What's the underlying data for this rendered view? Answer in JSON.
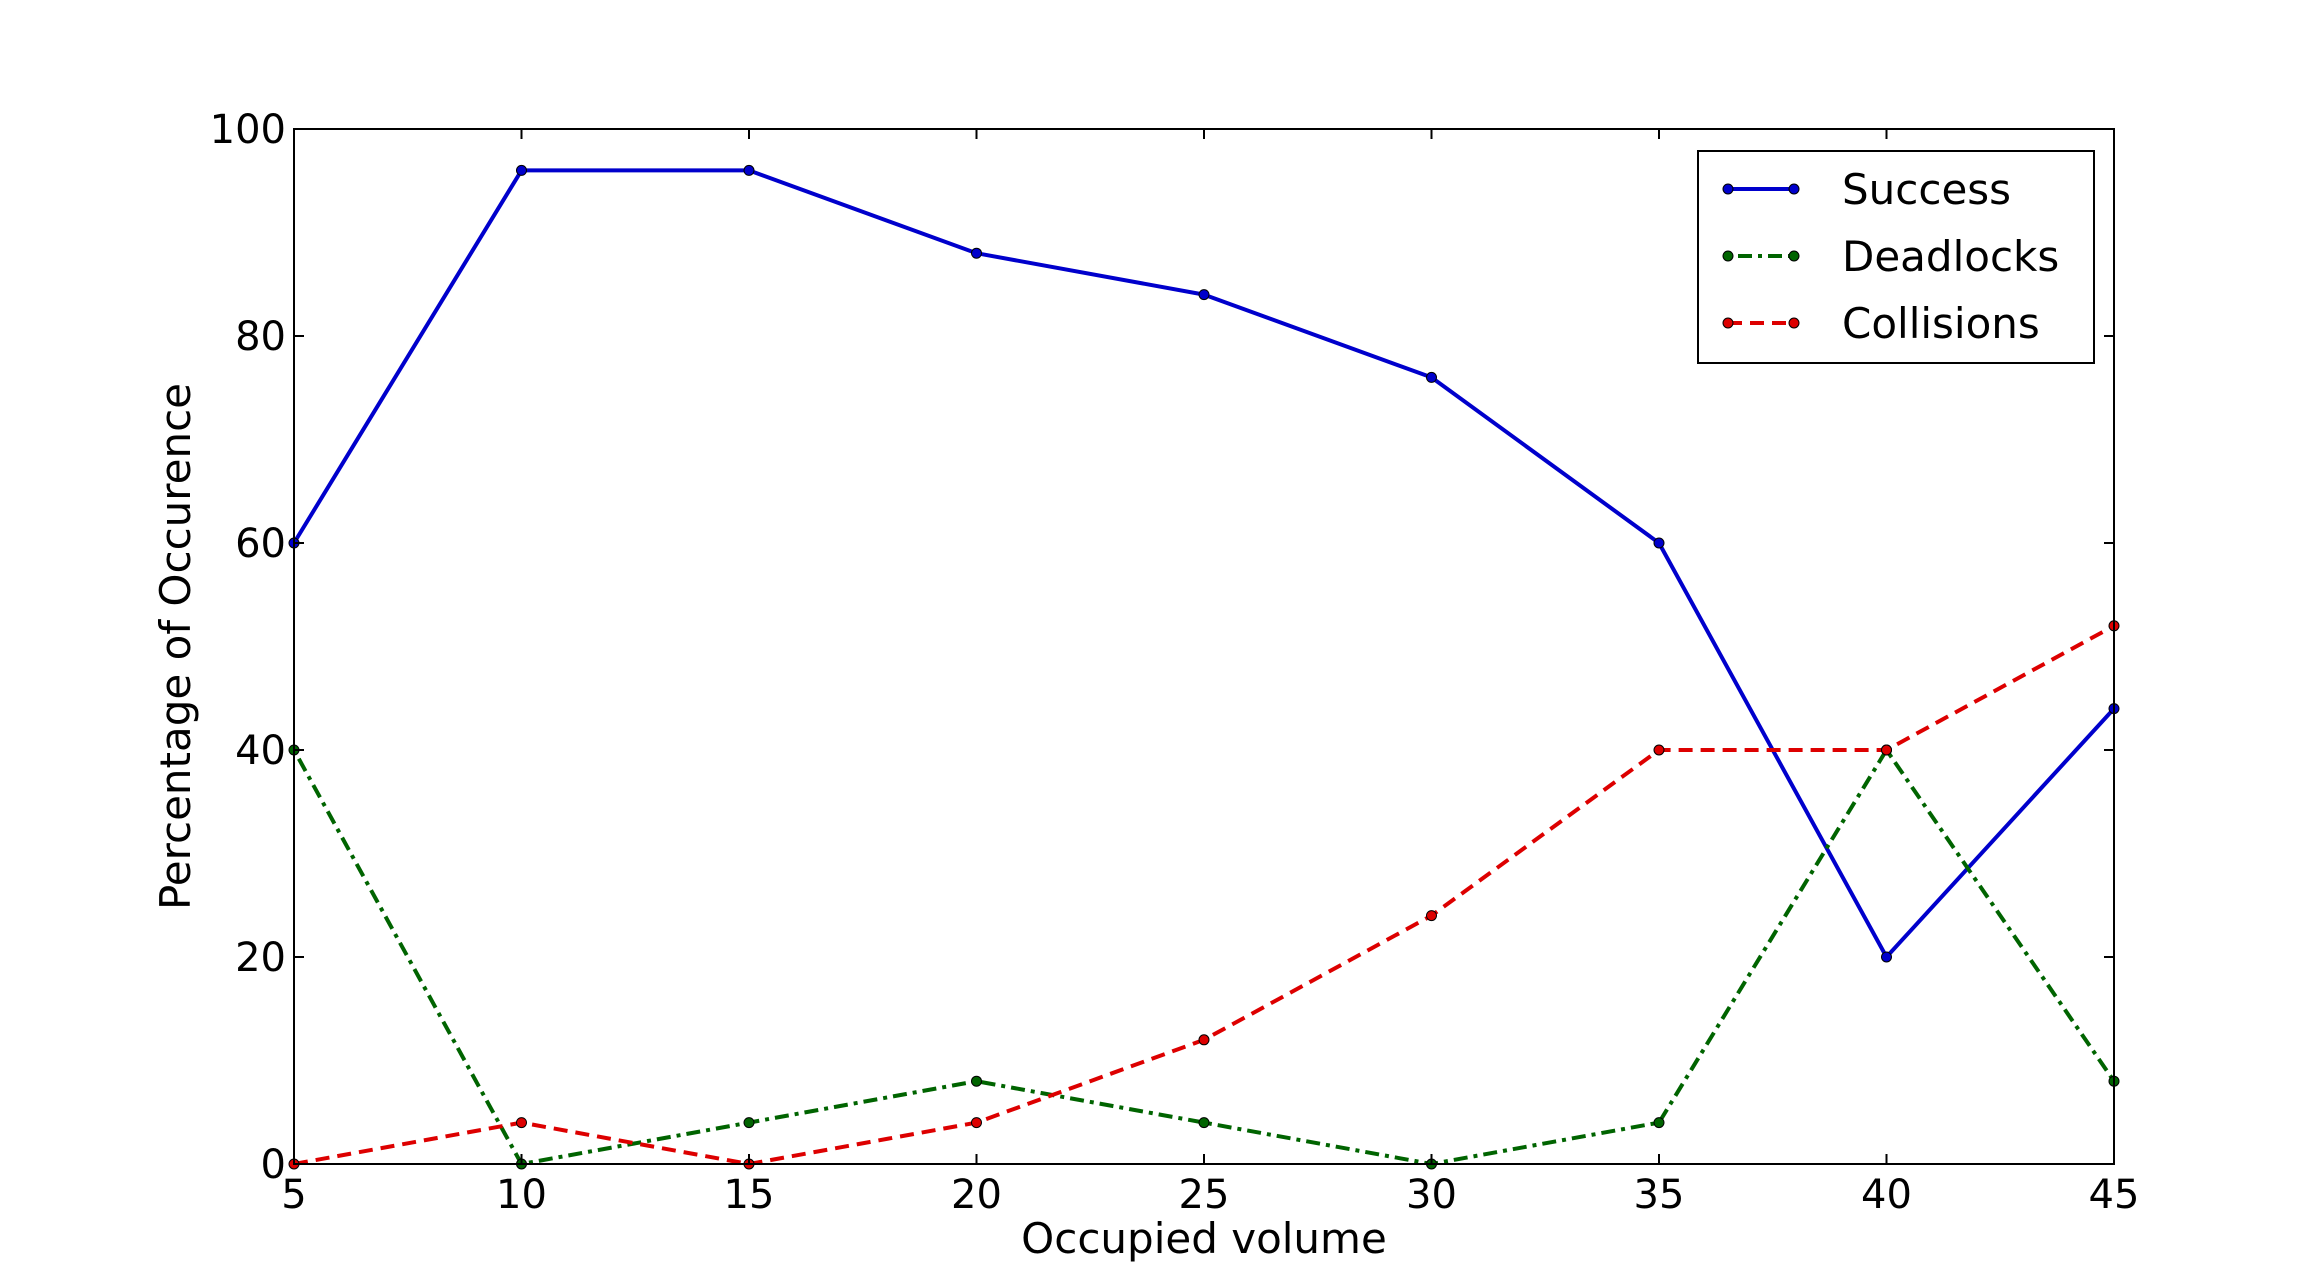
{
  "chart_data": {
    "type": "line",
    "title": "",
    "xlabel": "Occupied volume",
    "ylabel": "Percentage of Occurence",
    "xlim": [
      5,
      45
    ],
    "ylim": [
      0,
      100
    ],
    "x_ticks": [
      5,
      10,
      15,
      20,
      25,
      30,
      35,
      40,
      45
    ],
    "y_ticks": [
      0,
      20,
      40,
      60,
      80,
      100
    ],
    "x_tick_labels": [
      "5",
      "10",
      "15",
      "20",
      "25",
      "30",
      "35",
      "40",
      "45"
    ],
    "y_tick_labels": [
      "0",
      "20",
      "40",
      "60",
      "80",
      "100"
    ],
    "grid": false,
    "legend_position": "top-right",
    "x": [
      5,
      10,
      15,
      20,
      25,
      30,
      35,
      40,
      45
    ],
    "series": [
      {
        "name": "Success",
        "color": "#0000cc",
        "line_style": "solid",
        "values": [
          60,
          96,
          96,
          88,
          84,
          76,
          60,
          20,
          44
        ]
      },
      {
        "name": "Deadlocks",
        "color": "#006400",
        "line_style": "dashdot",
        "values": [
          40,
          0,
          4,
          8,
          4,
          0,
          4,
          40,
          8
        ]
      },
      {
        "name": "Collisions",
        "color": "#dd0000",
        "line_style": "dashed",
        "values": [
          0,
          4,
          0,
          4,
          12,
          24,
          40,
          40,
          52
        ]
      }
    ]
  }
}
